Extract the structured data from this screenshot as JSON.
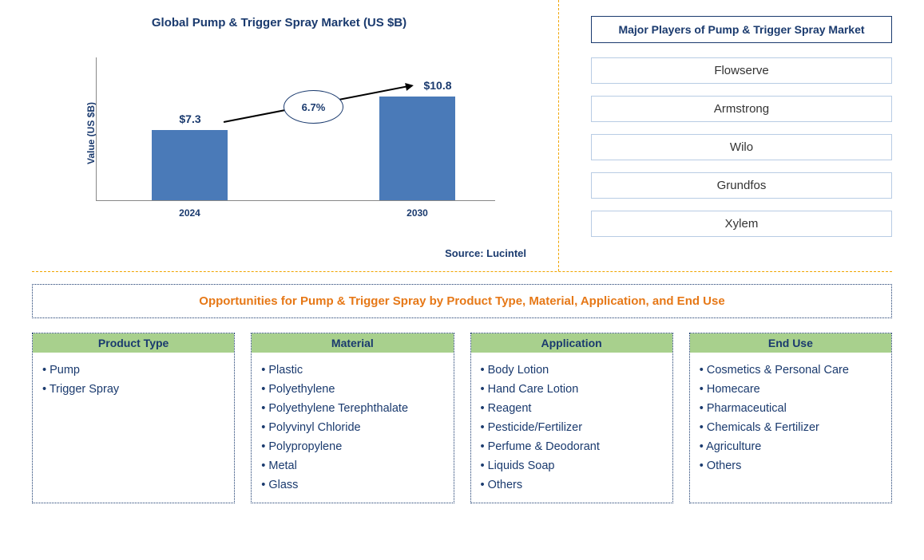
{
  "chart": {
    "title": "Global Pump & Trigger Spray Market (US $B)",
    "y_axis_label": "Value (US $B)",
    "type": "bar",
    "bar_color": "#4a7ab8",
    "title_color": "#1a3a6e",
    "text_color": "#1a3a6e",
    "background_color": "#ffffff",
    "bars": [
      {
        "label": "2024",
        "value": 7.3,
        "display": "$7.3"
      },
      {
        "label": "2030",
        "value": 10.8,
        "display": "$10.8"
      }
    ],
    "cagr": "6.7%",
    "y_max": 15,
    "source": "Source: Lucintel"
  },
  "players": {
    "title": "Major Players of Pump & Trigger Spray Market",
    "border_color": "#b8cce4",
    "items": [
      "Flowserve",
      "Armstrong",
      "Wilo",
      "Grundfos",
      "Xylem"
    ]
  },
  "opportunities": {
    "title": "Opportunities for Pump & Trigger Spray by Product Type, Material, Application, and End Use",
    "title_color": "#e67817",
    "header_bg": "#a8d08d",
    "border_style": "dotted",
    "categories": [
      {
        "name": "Product Type",
        "items": [
          "Pump",
          "Trigger Spray"
        ]
      },
      {
        "name": "Material",
        "items": [
          "Plastic",
          "Polyethylene",
          "Polyethylene Terephthalate",
          "Polyvinyl Chloride",
          "Polypropylene",
          "Metal",
          "Glass"
        ]
      },
      {
        "name": "Application",
        "items": [
          "Body Lotion",
          "Hand Care Lotion",
          "Reagent",
          "Pesticide/Fertilizer",
          "Perfume & Deodorant",
          "Liquids Soap",
          "Others"
        ]
      },
      {
        "name": "End Use",
        "items": [
          "Cosmetics & Personal Care",
          "Homecare",
          "Pharmaceutical",
          "Chemicals & Fertilizer",
          "Agriculture",
          "Others"
        ]
      }
    ]
  },
  "divider_color": "#f0a500"
}
